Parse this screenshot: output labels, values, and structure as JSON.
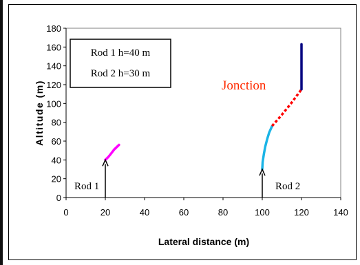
{
  "chart_data": {
    "type": "line",
    "title": "",
    "xlabel": "Lateral distance (m)",
    "ylabel": "Altitude (m)",
    "xlim": [
      0,
      140
    ],
    "ylim": [
      0,
      180
    ],
    "xticks": [
      "0",
      "20",
      "40",
      "60",
      "80",
      "100",
      "120",
      "140"
    ],
    "yticks": [
      "0",
      "20",
      "40",
      "60",
      "80",
      "100",
      "120",
      "140",
      "160",
      "180"
    ],
    "grid": false,
    "legend_box": [
      "Rod 1 h=40 m",
      "Rod 2 h=30 m"
    ],
    "series": [
      {
        "color": "#ff00ff",
        "style": "solid",
        "points": [
          [
            20,
            40
          ],
          [
            21.5,
            43
          ],
          [
            23,
            47
          ],
          [
            24.5,
            51
          ],
          [
            26,
            54
          ],
          [
            27,
            56
          ]
        ]
      },
      {
        "color": "#1ab4e6",
        "style": "solid",
        "points": [
          [
            100,
            30
          ],
          [
            100.2,
            38
          ],
          [
            100.8,
            46
          ],
          [
            101.5,
            54
          ],
          [
            102.5,
            62
          ],
          [
            103.5,
            69
          ],
          [
            105,
            76
          ]
        ]
      },
      {
        "color": "#ff0000",
        "style": "dotted",
        "points": [
          [
            105,
            76
          ],
          [
            110,
            88
          ],
          [
            115,
            101
          ],
          [
            120,
            115
          ]
        ]
      },
      {
        "color": "#000080",
        "style": "solid",
        "points": [
          [
            120,
            115
          ],
          [
            120,
            163
          ]
        ]
      }
    ],
    "annotations": [
      {
        "text": "Jonction",
        "x": 104,
        "y": 133,
        "color": "#ff2a00"
      },
      {
        "text": "Rod 1",
        "x": 5,
        "y": 13,
        "color": "#000000"
      },
      {
        "text": "Rod 2",
        "x": 106,
        "y": 13,
        "color": "#000000"
      }
    ],
    "arrows": [
      {
        "x": 20,
        "y_from": 0,
        "y_to": 40
      },
      {
        "x": 100,
        "y_from": 0,
        "y_to": 30
      }
    ]
  }
}
